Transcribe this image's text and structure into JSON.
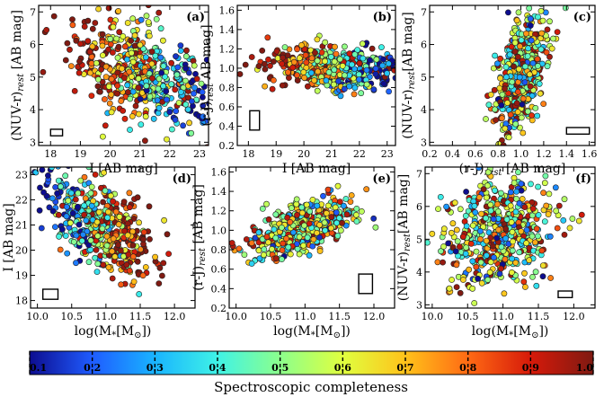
{
  "charts": [
    {
      "panel": "(a)",
      "x_label": "I [AB mag]",
      "y_label_main": "(NUV-r)",
      "y_label_sub": "rest",
      "y_label_tail": " [AB mag]",
      "x_ticks": [
        "18",
        "19",
        "20",
        "21",
        "22",
        "23"
      ],
      "x_tick_values": [
        18,
        19,
        20,
        21,
        22,
        23
      ],
      "y_ticks": [
        "3",
        "4",
        "5",
        "6",
        "7"
      ],
      "y_tick_values": [
        3,
        4,
        5,
        6,
        7
      ]
    },
    {
      "panel": "(b)",
      "x_label": "I [AB mag]",
      "y_label_main": "(r-J)",
      "y_label_sub": "rest",
      "y_label_tail": " AB mag]",
      "x_ticks": [
        "18",
        "19",
        "20",
        "21",
        "22",
        "23"
      ],
      "x_tick_values": [
        18,
        19,
        20,
        21,
        22,
        23
      ],
      "y_ticks": [
        "0.2",
        "0.4",
        "0.6",
        "0.8",
        "1.0",
        "1.2",
        "1.4",
        "1.6"
      ],
      "y_tick_values": [
        0.2,
        0.4,
        0.6,
        0.8,
        1.0,
        1.2,
        1.4,
        1.6
      ]
    },
    {
      "panel": "(c)",
      "x_label_main": "(r-J)",
      "x_label_sub": "rest",
      "x_label_tail": " [AB mag]",
      "y_label_main": "(NUV-r)",
      "y_label_sub": "rest",
      "y_label_tail": "[AB mag]",
      "x_ticks": [
        "0.2",
        "0.4",
        "0.6",
        "0.8",
        "1.0",
        "1.2",
        "1.4",
        "1.6"
      ],
      "x_tick_values": [
        0.2,
        0.4,
        0.6,
        0.8,
        1.0,
        1.2,
        1.4,
        1.6
      ],
      "y_ticks": [
        "3",
        "4",
        "5",
        "6",
        "7"
      ],
      "y_tick_values": [
        3,
        4,
        5,
        6,
        7
      ]
    },
    {
      "panel": "(d)",
      "x_label_main": "log(M",
      "x_label_sub": "*",
      "x_label_tail": "[M",
      "x_label_sun": "⊙",
      "x_label_end": "])",
      "y_label_main": "I [AB mag]",
      "x_ticks": [
        "10.0",
        "10.5",
        "11.0",
        "11.5",
        "12.0"
      ],
      "x_tick_values": [
        10.0,
        10.5,
        11.0,
        11.5,
        12.0
      ],
      "y_ticks": [
        "18",
        "19",
        "20",
        "21",
        "22",
        "23"
      ],
      "y_tick_values": [
        18,
        19,
        20,
        21,
        22,
        23
      ]
    },
    {
      "panel": "(e)",
      "x_label_main": "log(M",
      "x_label_sub": "*",
      "x_label_tail": "[M",
      "x_label_sun": "⊙",
      "x_label_end": "])",
      "y_label_main": "(r-J)",
      "y_label_sub": "rest",
      "y_label_tail": " [AB mag]",
      "x_ticks": [
        "10.0",
        "10.5",
        "11.0",
        "11.5",
        "12.0"
      ],
      "x_tick_values": [
        10.0,
        10.5,
        11.0,
        11.5,
        12.0
      ],
      "y_ticks": [
        "0.2",
        "0.4",
        "0.6",
        "0.8",
        "1.0",
        "1.2",
        "1.4",
        "1.6"
      ],
      "y_tick_values": [
        0.2,
        0.4,
        0.6,
        0.8,
        1.0,
        1.2,
        1.4,
        1.6
      ]
    },
    {
      "panel": "(f)",
      "x_label_main": "log(M",
      "x_label_sub": "*",
      "x_label_tail": "[M",
      "x_label_sun": "⊙",
      "x_label_end": "])",
      "y_label_main": "(NUV-r)",
      "y_label_sub": "rest",
      "y_label_tail": "[AB mag]",
      "x_ticks": [
        "10.0",
        "10.5",
        "11.0",
        "11.5",
        "12.0"
      ],
      "x_tick_values": [
        10.0,
        10.5,
        11.0,
        11.5,
        12.0
      ],
      "y_ticks": [
        "3",
        "4",
        "5",
        "6",
        "7"
      ],
      "y_tick_values": [
        3,
        4,
        5,
        6,
        7
      ]
    }
  ],
  "colorbar": {
    "label": "Spectroscopic completeness",
    "ticks": [
      "0.1",
      "0.2",
      "0.3",
      "0.4",
      "0.5",
      "0.6",
      "0.7",
      "0.8",
      "0.9",
      "1.0"
    ],
    "tick_values": [
      0.1,
      0.2,
      0.3,
      0.4,
      0.5,
      0.6,
      0.7,
      0.8,
      0.9,
      1.0
    ],
    "colors": [
      "#0d0d8f",
      "#1f5cff",
      "#19b4ff",
      "#3ff2e6",
      "#8cff8c",
      "#e0ff3f",
      "#ffc21a",
      "#ff6a14",
      "#d61a0a",
      "#7f1a12"
    ]
  },
  "chart_data": [
    {
      "type": "scatter",
      "title": "(a)",
      "xlabel": "I [AB mag]",
      "ylabel": "(NUV-r)_rest [AB mag]",
      "xlim": [
        17.6,
        23.3
      ],
      "ylim": [
        2.9,
        7.2
      ],
      "cloud": {
        "x_center": 21.0,
        "x_spread": 1.1,
        "y_center": 5.1,
        "y_spread": 0.7,
        "slope": -0.35,
        "n_points": 520
      },
      "error_box": {
        "x": 18.0,
        "y": 3.2,
        "width": 0.4,
        "height": 0.2
      },
      "trend": "bright (I~18-19) galaxies have completeness ~0.8-1.0 and red NUV-r ~6; faint (I~22-23) galaxies have completeness ~0.1-0.4"
    },
    {
      "type": "scatter",
      "title": "(b)",
      "xlabel": "I [AB mag]",
      "ylabel": "(r-J)_rest AB mag]",
      "xlim": [
        17.6,
        23.3
      ],
      "ylim": [
        0.2,
        1.65
      ],
      "cloud": {
        "x_center": 21.0,
        "x_spread": 1.1,
        "y_center": 1.0,
        "y_spread": 0.11,
        "slope": -0.02,
        "n_points": 520
      },
      "error_box": {
        "x": 18.05,
        "y": 0.36,
        "width": 0.35,
        "height": 0.2
      },
      "trend": "r-J roughly constant ~1.0 across I; completeness decreases toward faint I"
    },
    {
      "type": "scatter",
      "title": "(c)",
      "xlabel": "(r-J)_rest [AB mag]",
      "ylabel": "(NUV-r)_rest[AB mag]",
      "xlim": [
        0.2,
        1.65
      ],
      "ylim": [
        2.9,
        7.2
      ],
      "cloud": {
        "x_center": 1.0,
        "x_spread": 0.11,
        "y_center": 5.1,
        "y_spread": 0.75,
        "slope": 4.5,
        "n_points": 520
      },
      "error_box": {
        "x": 1.4,
        "y": 3.25,
        "width": 0.2,
        "height": 0.2
      },
      "trend": "positive correlation between r-J and NUV-r"
    },
    {
      "type": "scatter",
      "title": "(d)",
      "xlabel": "log(M*[Msun])",
      "ylabel": "I [AB mag]",
      "xlim": [
        9.9,
        12.3
      ],
      "ylim": [
        17.7,
        23.3
      ],
      "cloud": {
        "x_center": 10.9,
        "x_spread": 0.38,
        "y_center": 21.0,
        "y_spread": 0.8,
        "slope": -1.6,
        "n_points": 520
      },
      "error_box": {
        "x": 10.08,
        "y": 18.05,
        "width": 0.22,
        "height": 0.4
      },
      "trend": "I gets brighter with increasing stellar mass; massive galaxies have higher completeness"
    },
    {
      "type": "scatter",
      "title": "(e)",
      "xlabel": "log(M*[Msun])",
      "ylabel": "(r-J)_rest [AB mag]",
      "xlim": [
        9.9,
        12.3
      ],
      "ylim": [
        0.2,
        1.65
      ],
      "cloud": {
        "x_center": 10.95,
        "x_spread": 0.38,
        "y_center": 1.02,
        "y_spread": 0.12,
        "slope": 0.25,
        "n_points": 520
      },
      "error_box": {
        "x": 11.78,
        "y": 0.35,
        "width": 0.2,
        "height": 0.2
      },
      "trend": "r-J increases mildly with stellar mass"
    },
    {
      "type": "scatter",
      "title": "(f)",
      "xlabel": "log(M*[Msun])",
      "ylabel": "(NUV-r)_rest[AB mag]",
      "xlim": [
        9.9,
        12.3
      ],
      "ylim": [
        2.9,
        7.2
      ],
      "cloud": {
        "x_center": 10.95,
        "x_spread": 0.4,
        "y_center": 5.2,
        "y_spread": 0.75,
        "slope": 0.6,
        "n_points": 520
      },
      "error_box": {
        "x": 11.78,
        "y": 3.22,
        "width": 0.2,
        "height": 0.2
      },
      "trend": "NUV-r weakly increases with stellar mass"
    }
  ]
}
